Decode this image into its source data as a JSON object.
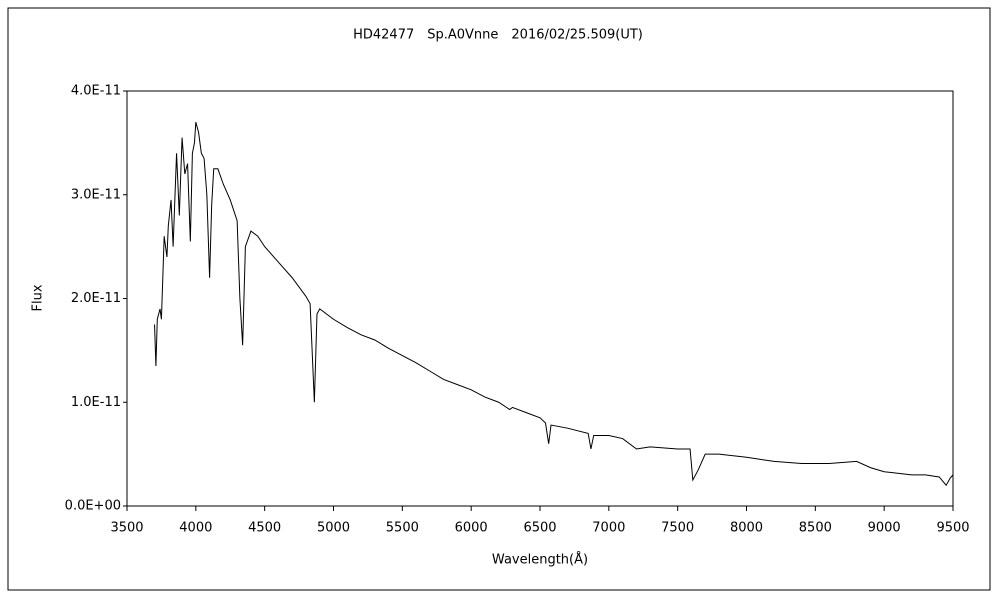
{
  "chart_data": {
    "type": "line",
    "title": "HD42477　Sp.A0Vnne　2016/02/25.509(UT)",
    "x_label": "Wavelength(Å)",
    "y_label": "Flux",
    "xlim": [
      3500,
      9500
    ],
    "xticks": [
      3500,
      4000,
      4500,
      5000,
      5500,
      6000,
      6500,
      7000,
      7500,
      8000,
      8500,
      9000,
      9500
    ],
    "ylim": [
      0,
      4e-11
    ],
    "yticks": [
      {
        "value": 0,
        "label": "0.0E+00"
      },
      {
        "value": 1e-11,
        "label": "1.0E-11"
      },
      {
        "value": 2e-11,
        "label": "2.0E-11"
      },
      {
        "value": 3e-11,
        "label": "3.0E-11"
      },
      {
        "value": 4e-11,
        "label": "4.0E-11"
      }
    ],
    "grid": false,
    "series": [
      {
        "color": "#000000",
        "x": [
          3700,
          3710,
          3720,
          3740,
          3750,
          3770,
          3790,
          3800,
          3820,
          3835,
          3860,
          3880,
          3900,
          3920,
          3940,
          3960,
          3975,
          3990,
          4000,
          4020,
          4040,
          4060,
          4080,
          4100,
          4115,
          4130,
          4160,
          4200,
          4250,
          4300,
          4320,
          4340,
          4360,
          4400,
          4450,
          4500,
          4600,
          4700,
          4800,
          4830,
          4861,
          4880,
          4900,
          5000,
          5100,
          5200,
          5300,
          5400,
          5500,
          5600,
          5700,
          5800,
          5900,
          6000,
          6100,
          6200,
          6280,
          6300,
          6400,
          6500,
          6540,
          6563,
          6580,
          6700,
          6850,
          6870,
          6890,
          7000,
          7100,
          7200,
          7300,
          7500,
          7590,
          7610,
          7650,
          7700,
          7800,
          8000,
          8200,
          8400,
          8600,
          8800,
          8900,
          9000,
          9200,
          9300,
          9400,
          9450,
          9480,
          9500
        ],
        "values": [
          1.75e-11,
          1.35e-11,
          1.8e-11,
          1.9e-11,
          1.8e-11,
          2.6e-11,
          2.4e-11,
          2.7e-11,
          2.95e-11,
          2.5e-11,
          3.4e-11,
          2.8e-11,
          3.55e-11,
          3.2e-11,
          3.3e-11,
          2.55e-11,
          3.4e-11,
          3.5e-11,
          3.7e-11,
          3.6e-11,
          3.4e-11,
          3.35e-11,
          3e-11,
          2.2e-11,
          2.9e-11,
          3.25e-11,
          3.25e-11,
          3.1e-11,
          2.95e-11,
          2.75e-11,
          2e-11,
          1.55e-11,
          2.5e-11,
          2.65e-11,
          2.6e-11,
          2.5e-11,
          2.35e-11,
          2.2e-11,
          2.02e-11,
          1.95e-11,
          1e-11,
          1.85e-11,
          1.9e-11,
          1.8e-11,
          1.72e-11,
          1.65e-11,
          1.6e-11,
          1.52e-11,
          1.45e-11,
          1.38e-11,
          1.3e-11,
          1.22e-11,
          1.17e-11,
          1.12e-11,
          1.05e-11,
          1e-11,
          9.3e-12,
          9.5e-12,
          9e-12,
          8.5e-12,
          8e-12,
          6e-12,
          7.8e-12,
          7.5e-12,
          7e-12,
          5.5e-12,
          6.8e-12,
          6.8e-12,
          6.5e-12,
          5.5e-12,
          5.7e-12,
          5.5e-12,
          5.5e-12,
          2.5e-12,
          3.5e-12,
          5e-12,
          5e-12,
          4.7e-12,
          4.3e-12,
          4.1e-12,
          4.1e-12,
          4.3e-12,
          3.7e-12,
          3.3e-12,
          3e-12,
          3e-12,
          2.8e-12,
          2e-12,
          2.7e-12,
          3e-12
        ]
      }
    ]
  }
}
